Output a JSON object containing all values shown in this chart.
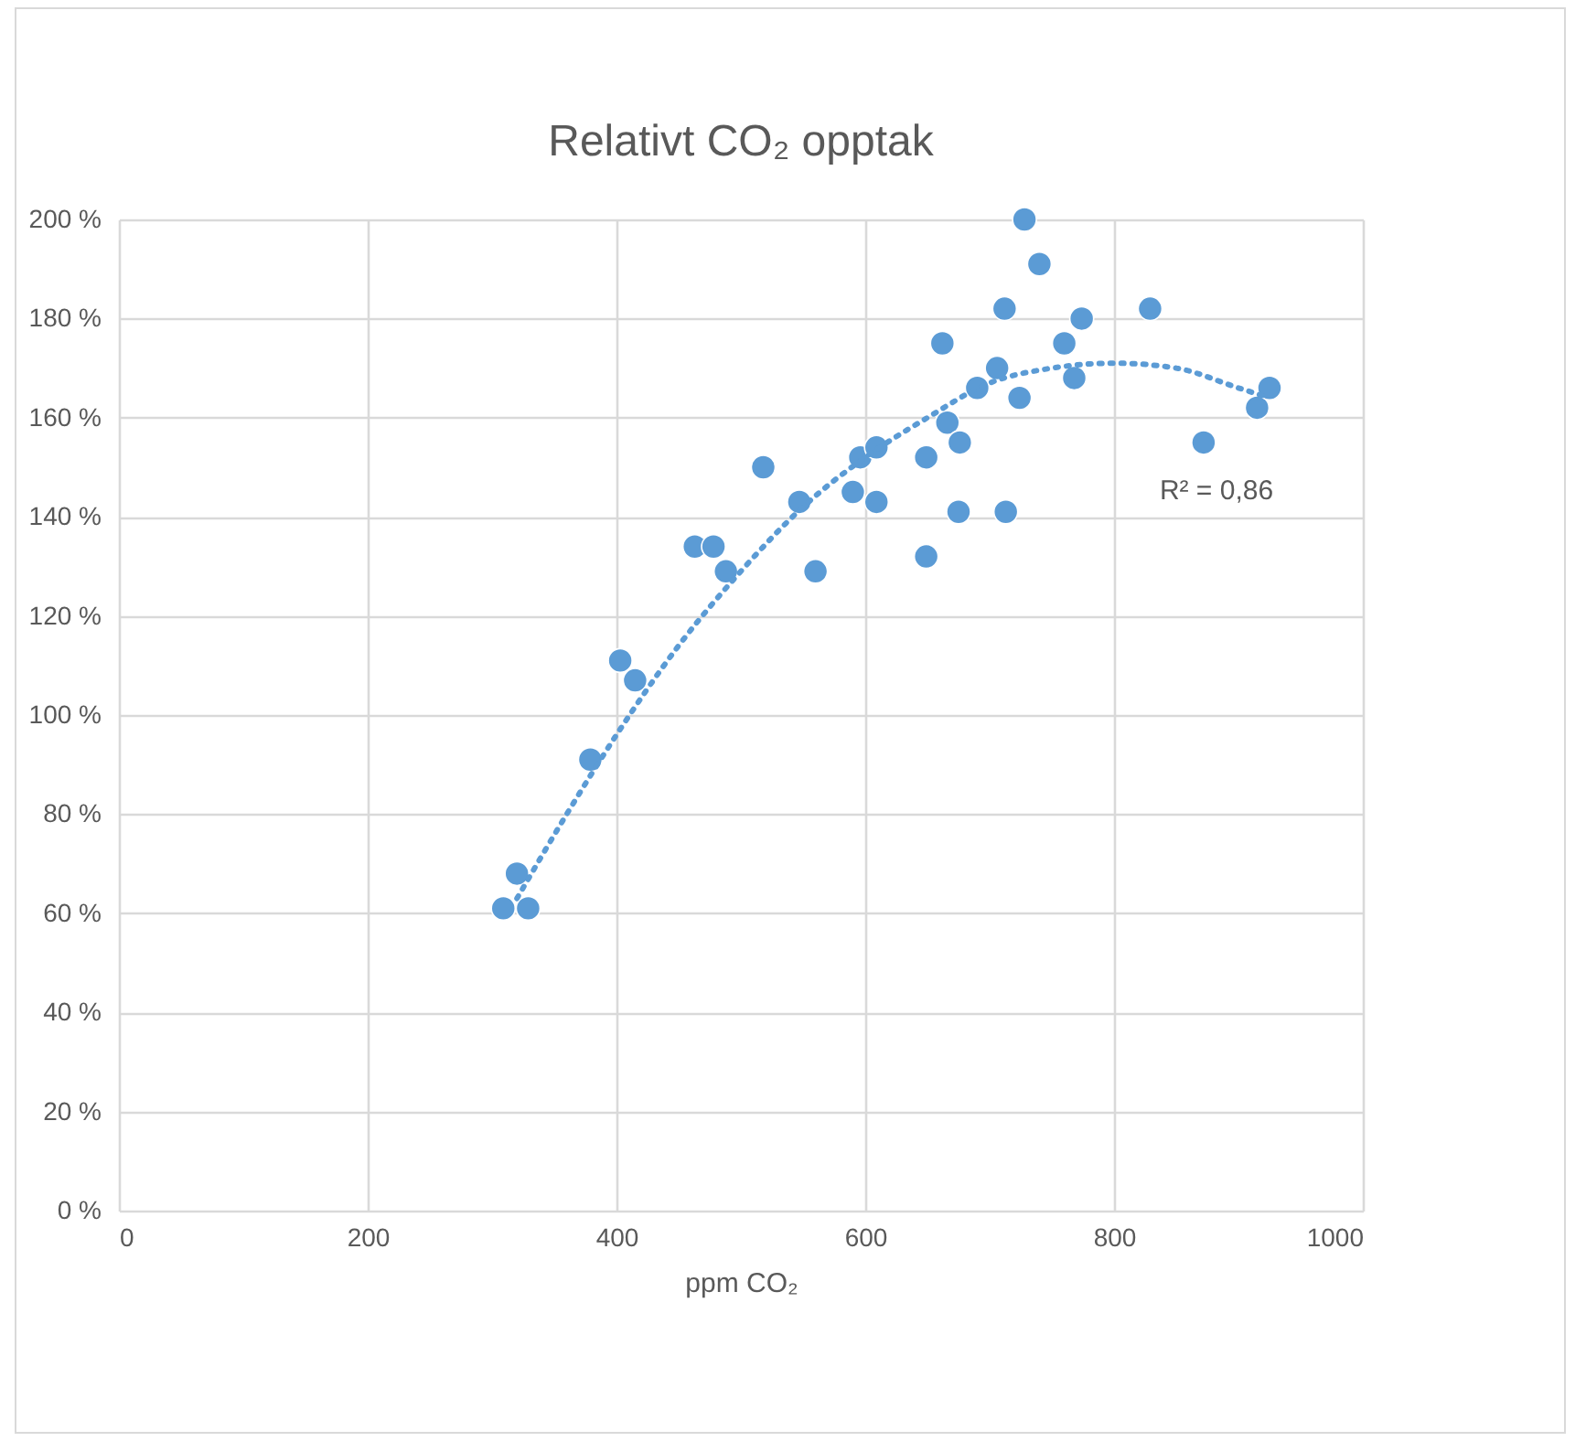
{
  "chart_data": {
    "type": "scatter",
    "title": "Relativt CO₂ opptak",
    "xlabel": "ppm CO₂",
    "xlim": [
      0,
      1000
    ],
    "xticks": [
      0,
      200,
      400,
      600,
      800,
      1000
    ],
    "ylim": [
      0,
      200
    ],
    "yticks": [
      {
        "value": 0,
        "label": "0 %"
      },
      {
        "value": 20,
        "label": "20 %"
      },
      {
        "value": 40,
        "label": "40 %"
      },
      {
        "value": 60,
        "label": "60 %"
      },
      {
        "value": 80,
        "label": "80 %"
      },
      {
        "value": 100,
        "label": "100 %"
      },
      {
        "value": 120,
        "label": "120 %"
      },
      {
        "value": 140,
        "label": "140 %"
      },
      {
        "value": 160,
        "label": "160 %"
      },
      {
        "value": 180,
        "label": "180 %"
      },
      {
        "value": 200,
        "label": "200 %"
      }
    ],
    "grid": true,
    "marker": "circle",
    "annotations": [
      "R² = 0,86"
    ],
    "series": [
      {
        "color": "#5b9bd5",
        "x": [
          309,
          329,
          320,
          379,
          403,
          415,
          463,
          478,
          488,
          518,
          547,
          560,
          590,
          596,
          609,
          609,
          649,
          649,
          662,
          666,
          676,
          675,
          690,
          706,
          712,
          713,
          724,
          728,
          740,
          760,
          768,
          774,
          829,
          872,
          915,
          925
        ],
        "values": [
          61,
          61,
          68,
          91,
          111,
          107,
          134,
          134,
          129,
          150,
          143,
          129,
          145,
          152,
          154,
          143,
          152,
          132,
          175,
          159,
          155,
          141,
          166,
          170,
          182,
          141,
          164,
          200,
          191,
          175,
          168,
          180,
          182,
          155,
          162,
          166
        ]
      },
      {
        "type": "line",
        "color": "#5b9bd5",
        "line_style": "dotted",
        "marker": "none",
        "x": [
          320,
          360,
          400,
          450,
          500,
          550,
          600,
          650,
          700,
          750,
          800,
          850,
          900,
          925
        ],
        "values": [
          63,
          80,
          96,
          114,
          129,
          142,
          152,
          160,
          167,
          170,
          171,
          170,
          166,
          164
        ]
      }
    ]
  }
}
